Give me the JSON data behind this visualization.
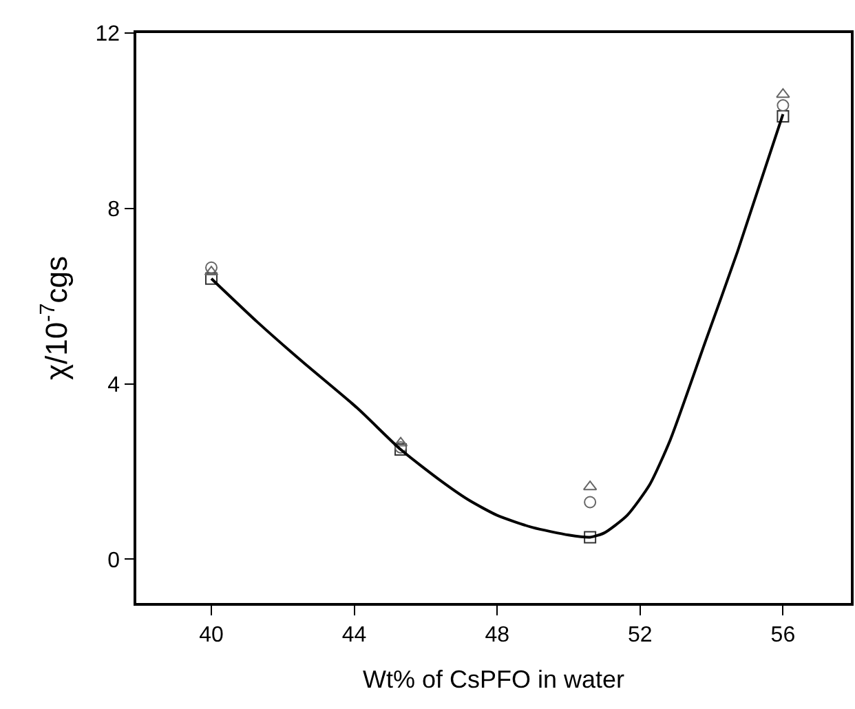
{
  "chart_data": {
    "type": "scatter",
    "xlabel": "Wt% of CsPFO in water",
    "ylabel": "χ/10$^{-7}$cgs",
    "x": [
      40,
      45.3,
      50.6,
      56
    ],
    "series": [
      {
        "marker": "square",
        "color": "#333333",
        "values": [
          6.4,
          2.5,
          0.5,
          10.1
        ]
      },
      {
        "marker": "circle",
        "color": "#666666",
        "values": [
          6.65,
          2.55,
          1.3,
          10.35
        ]
      },
      {
        "marker": "triangle",
        "color": "#666666",
        "values": [
          6.55,
          2.65,
          1.65,
          10.6
        ]
      },
      {
        "type": "line",
        "marker": "none",
        "color": "#000000",
        "x": [
          40,
          41.3,
          42.54,
          44.08,
          45.3,
          46.4,
          47.2,
          48,
          49,
          50,
          50.6,
          51.0,
          51.64,
          52.27,
          52.85,
          53.81,
          54.73,
          56
        ],
        "values": [
          6.4,
          5.4,
          4.51,
          3.45,
          2.5,
          1.8,
          1.35,
          1.0,
          0.72,
          0.55,
          0.5,
          0.6,
          1.0,
          1.7,
          2.73,
          4.92,
          7.02,
          10.15
        ]
      }
    ],
    "xlim": [
      37.9,
      57.9
    ],
    "xticks": [
      40,
      44,
      48,
      52,
      56
    ],
    "ylim": [
      -1,
      12
    ],
    "yticks": [
      0,
      4,
      8,
      12
    ],
    "grid": false,
    "line_style": "solid"
  }
}
